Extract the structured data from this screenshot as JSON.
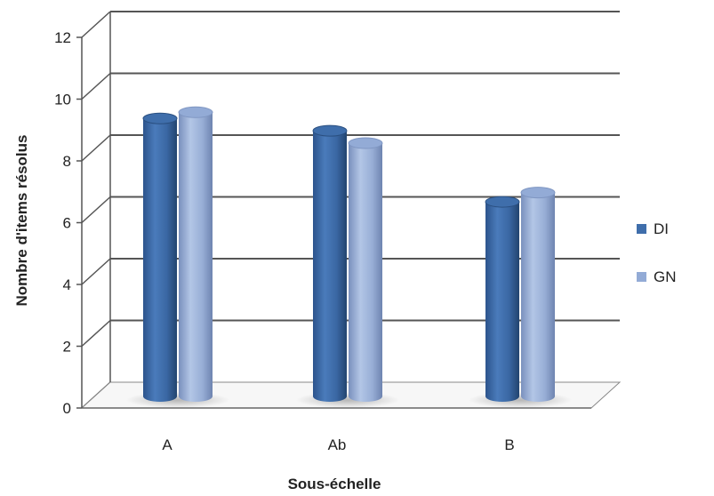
{
  "chart_data": {
    "type": "bar",
    "categories": [
      "A",
      "Ab",
      "B"
    ],
    "series": [
      {
        "name": "DI",
        "values": [
          9.0,
          8.6,
          6.3
        ],
        "color": "#3f6eab"
      },
      {
        "name": "GN",
        "values": [
          9.2,
          8.2,
          6.6
        ],
        "color": "#93abd6"
      }
    ],
    "xlabel": "Sous-échelle",
    "ylabel": "Nombre d'items résolus",
    "ylim": [
      0,
      12
    ],
    "yticks": [
      "0",
      "2",
      "4",
      "6",
      "8",
      "10",
      "12"
    ],
    "grid": true,
    "legend_position": "right",
    "style": "3d-cylinder"
  }
}
